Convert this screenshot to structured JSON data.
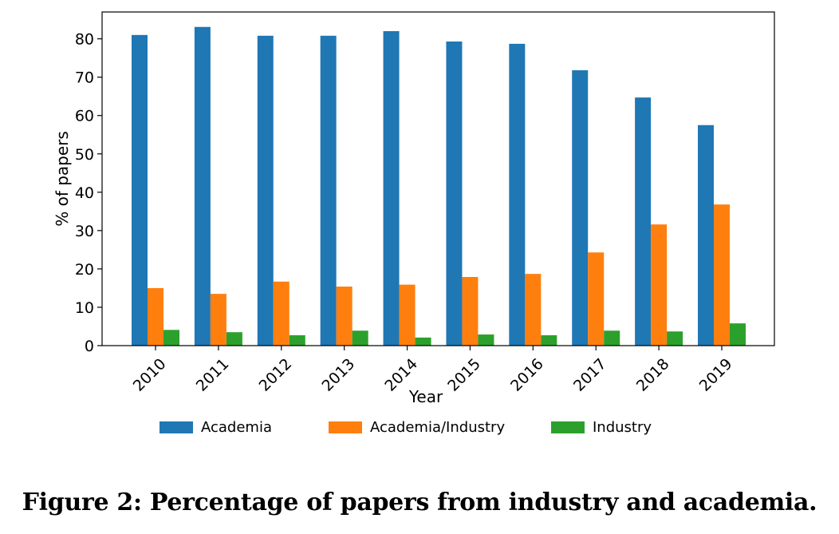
{
  "chart_data": {
    "type": "bar",
    "title": "",
    "xlabel": "Year",
    "ylabel": "% of papers",
    "ylim": [
      0,
      87
    ],
    "yticks": [
      0,
      10,
      20,
      30,
      40,
      50,
      60,
      70,
      80
    ],
    "categories": [
      "2010",
      "2011",
      "2012",
      "2013",
      "2014",
      "2015",
      "2016",
      "2017",
      "2018",
      "2019"
    ],
    "series": [
      {
        "name": "Academia",
        "color": "#1f77b4",
        "values": [
          81.0,
          83.1,
          80.8,
          80.8,
          82.0,
          79.3,
          78.7,
          71.8,
          64.7,
          57.5
        ]
      },
      {
        "name": "Academia/Industry",
        "color": "#ff7f0e",
        "values": [
          15.0,
          13.5,
          16.7,
          15.4,
          15.9,
          17.9,
          18.7,
          24.3,
          31.6,
          36.8
        ]
      },
      {
        "name": "Industry",
        "color": "#2ca02c",
        "values": [
          4.1,
          3.5,
          2.7,
          3.9,
          2.1,
          2.9,
          2.7,
          3.9,
          3.7,
          5.8
        ]
      }
    ],
    "legend_position": "bottom"
  },
  "caption": "Figure 2: Percentage of papers from industry and academia."
}
